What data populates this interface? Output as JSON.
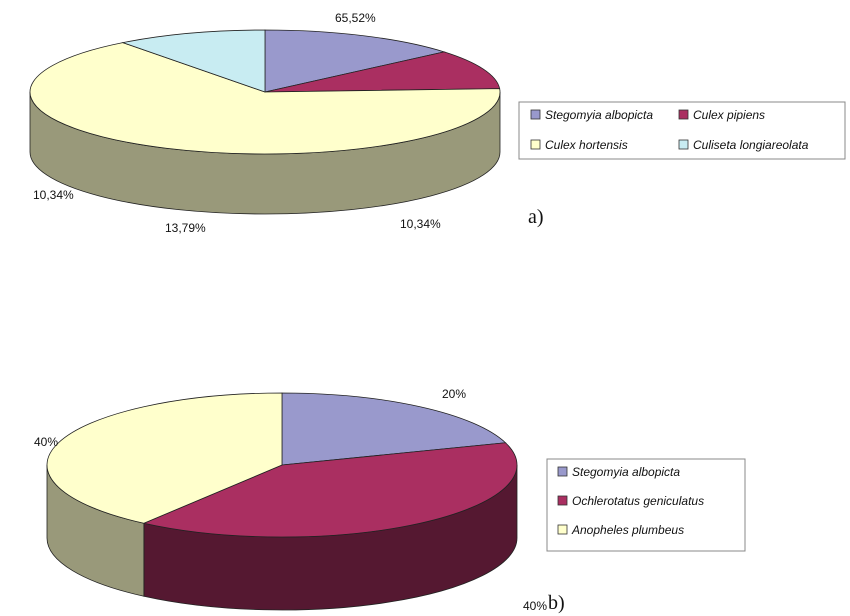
{
  "chart_data": [
    {
      "type": "pie",
      "panel_label": "a)",
      "categories": [
        "Stegomyia albopicta",
        "Culex pipiens",
        "Culex hortensis",
        "Culiseta longiareolata"
      ],
      "values": [
        13.79,
        10.34,
        65.52,
        10.34
      ],
      "value_labels": [
        "13,79%",
        "10,34%",
        "65,52%",
        "10,34%"
      ],
      "colors": [
        "#9999cc",
        "#aa2f61",
        "#ffffcc",
        "#c8ecf2"
      ],
      "legend_placement": "right"
    },
    {
      "type": "pie",
      "panel_label": "b)",
      "categories": [
        "Stegomyia albopicta",
        "Ochlerotatus geniculatus",
        "Anopheles plumbeus"
      ],
      "values": [
        20,
        40,
        40
      ],
      "value_labels": [
        "20%",
        "40%",
        "40%"
      ],
      "colors": [
        "#9999cc",
        "#aa2f61",
        "#ffffcc"
      ],
      "legend_placement": "right"
    }
  ]
}
